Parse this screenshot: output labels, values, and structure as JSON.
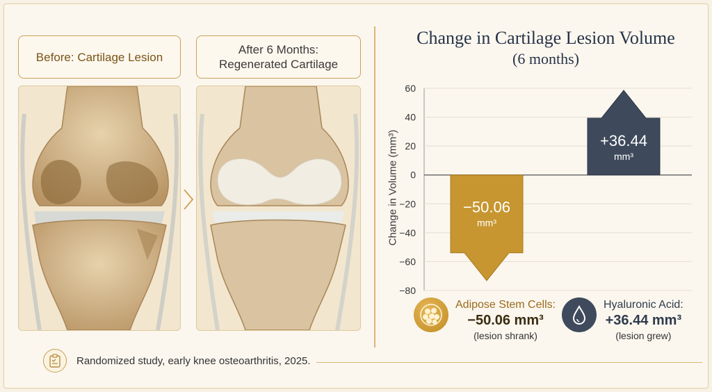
{
  "labels": {
    "before": "Before: Cartilage Lesion",
    "after_line1": "After 6 Months:",
    "after_line2": "Regenerated Cartilage"
  },
  "chart_data": {
    "type": "bar",
    "title": "Change in Cartilage Lesion Volume",
    "subtitle": "(6 months)",
    "xlabel": "",
    "ylabel": "Change in Volume (mm³)",
    "ylim": [
      -80,
      60
    ],
    "yticks": [
      60,
      40,
      20,
      0,
      -20,
      -40,
      -60,
      -80
    ],
    "grid": true,
    "categories": [
      "Adipose Stem Cells",
      "Hyaluronic Acid"
    ],
    "values": [
      -50.06,
      36.44
    ],
    "value_labels": [
      "−50.06",
      "+36.44"
    ],
    "unit": "mm³",
    "colors": [
      "#c79630",
      "#3e4a5b"
    ]
  },
  "legend": {
    "adipose": {
      "name": "Adipose Stem Cells:",
      "value": "−50.06 mm³",
      "note": "(lesion shrank)"
    },
    "ha": {
      "name": "Hyaluronic Acid:",
      "value": "+36.44 mm³",
      "note": "(lesion grew)"
    }
  },
  "footer": {
    "text": "Randomized study, early knee osteoarthritis, 2025."
  },
  "icons": {
    "chevron": "chevron-right-icon",
    "cells": "stem-cells-icon",
    "droplet": "droplet-icon",
    "clipboard": "clipboard-icon"
  },
  "colors": {
    "gold": "#c9a055",
    "navy": "#263347"
  }
}
